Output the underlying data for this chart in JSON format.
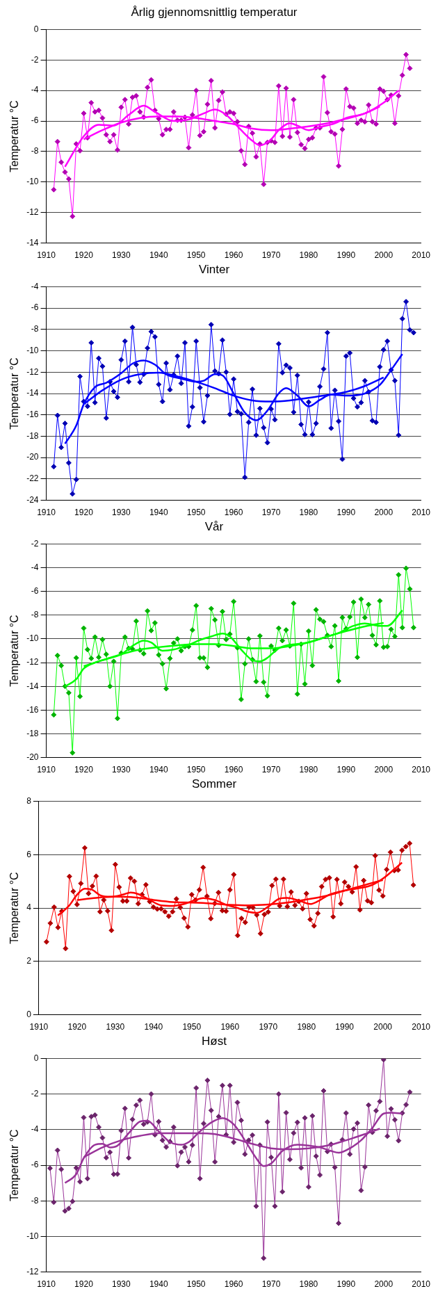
{
  "chart_data": [
    {
      "type": "line",
      "title": "Årlig gjennomsnittlig temperatur",
      "ylabel": "Temperatur °C",
      "xlim": [
        1910,
        2010
      ],
      "xticks": [
        1910,
        1920,
        1930,
        1940,
        1950,
        1960,
        1970,
        1980,
        1990,
        2000,
        2010
      ],
      "ylim": [
        -14,
        0
      ],
      "yticks": [
        -14,
        -12,
        -10,
        -8,
        -6,
        -4,
        -2,
        0
      ],
      "grid": "y",
      "legend": false,
      "marker": "diamond",
      "x": [
        1912,
        1913,
        1914,
        1915,
        1916,
        1917,
        1918,
        1919,
        1920,
        1921,
        1922,
        1923,
        1924,
        1925,
        1926,
        1927,
        1928,
        1929,
        1930,
        1931,
        1932,
        1933,
        1934,
        1935,
        1936,
        1937,
        1938,
        1939,
        1940,
        1941,
        1942,
        1943,
        1944,
        1945,
        1946,
        1947,
        1948,
        1949,
        1950,
        1951,
        1952,
        1953,
        1954,
        1955,
        1956,
        1957,
        1958,
        1959,
        1960,
        1961,
        1962,
        1963,
        1964,
        1965,
        1966,
        1967,
        1968,
        1969,
        1970,
        1971,
        1972,
        1973,
        1974,
        1975,
        1976,
        1977,
        1978,
        1979,
        1980,
        1981,
        1982,
        1983,
        1984,
        1985,
        1986,
        1987,
        1988,
        1989,
        1990,
        1991,
        1992,
        1993,
        1994,
        1995,
        1996,
        1997,
        1998,
        1999,
        2000,
        2001,
        2002,
        2003,
        2004,
        2005,
        2006,
        2007
      ],
      "series": [
        {
          "color": "#ff00ff",
          "values": [
            -10.5,
            -7.35,
            -8.7,
            -9.35,
            -9.8,
            -12.25,
            -7.5,
            -7.95,
            -5.5,
            -7.1,
            -4.8,
            -5.4,
            -5.3,
            -5.8,
            -6.9,
            -7.35,
            -6.9,
            -7.9,
            -5.1,
            -4.6,
            -6.2,
            -4.45,
            -4.35,
            -5.4,
            -5.75,
            -3.8,
            -3.3,
            -5.3,
            -5.85,
            -6.9,
            -6.55,
            -6.55,
            -5.4,
            -5.95,
            -5.95,
            -5.75,
            -7.75,
            -5.6,
            -4.0,
            -6.95,
            -6.7,
            -4.9,
            -3.35,
            -6.45,
            -4.65,
            -4.1,
            -5.55,
            -5.4,
            -5.5,
            -6.05,
            -7.95,
            -8.85,
            -6.35,
            -6.8,
            -8.35,
            -7.5,
            -10.15,
            -7.4,
            -7.3,
            -7.4,
            -3.7,
            -7.0,
            -3.85,
            -7.05,
            -4.6,
            -6.75,
            -7.55,
            -7.8,
            -7.2,
            -7.1,
            -6.45,
            -6.45,
            -3.1,
            -5.45,
            -6.7,
            -6.85,
            -8.95,
            -6.55,
            -3.9,
            -5.05,
            -5.15,
            -6.15,
            -5.95,
            -6.05,
            -4.95,
            -6.05,
            -6.2,
            -3.9,
            -4.05,
            -4.6,
            -4.3,
            -6.15,
            -4.35,
            -3.0,
            -1.65,
            -2.55
          ]
        },
        {
          "color": "#ff00ff",
          "marker": "none",
          "x": [
            1915,
            1920,
            1924,
            1928,
            1932,
            1936,
            1939,
            1944,
            1948,
            1952,
            1955,
            1958,
            1962,
            1965,
            1967,
            1970,
            1972,
            1975,
            1977,
            1980,
            1983,
            1987,
            1990,
            1995,
            2000,
            2004
          ],
          "values": [
            -9.0,
            -7.0,
            -6.25,
            -6.3,
            -5.6,
            -5.0,
            -5.4,
            -6.0,
            -5.9,
            -5.5,
            -5.25,
            -5.6,
            -6.6,
            -7.3,
            -7.6,
            -7.2,
            -6.6,
            -6.15,
            -6.3,
            -6.6,
            -6.4,
            -6.15,
            -5.8,
            -5.5,
            -4.8,
            -4.0
          ]
        },
        {
          "color": "#ff00ff",
          "marker": "none",
          "x": [
            1920,
            1925,
            1930,
            1935,
            1940,
            1945,
            1950,
            1955,
            1960,
            1965,
            1970,
            1975,
            1980,
            1985,
            1990,
            1995,
            1999
          ],
          "values": [
            -7.2,
            -6.6,
            -6.1,
            -5.8,
            -5.7,
            -5.7,
            -5.8,
            -6.0,
            -6.2,
            -6.5,
            -6.6,
            -6.5,
            -6.35,
            -6.15,
            -5.85,
            -5.5,
            -5.05
          ]
        }
      ]
    },
    {
      "type": "line",
      "title": "Vinter",
      "ylabel": "Temperatur °C",
      "xlim": [
        1910,
        2010
      ],
      "xticks": [
        1910,
        1920,
        1930,
        1940,
        1950,
        1960,
        1970,
        1980,
        1990,
        2000,
        2010
      ],
      "ylim": [
        -24,
        -4
      ],
      "yticks": [
        -24,
        -22,
        -20,
        -18,
        -16,
        -14,
        -12,
        -10,
        -8,
        -6,
        -4
      ],
      "grid": "y",
      "legend": false,
      "marker": "diamond",
      "x": [
        1912,
        1913,
        1914,
        1915,
        1916,
        1917,
        1918,
        1919,
        1920,
        1921,
        1922,
        1923,
        1924,
        1925,
        1926,
        1927,
        1928,
        1929,
        1930,
        1931,
        1932,
        1933,
        1934,
        1935,
        1936,
        1937,
        1938,
        1939,
        1940,
        1941,
        1942,
        1943,
        1944,
        1945,
        1946,
        1947,
        1948,
        1949,
        1950,
        1951,
        1952,
        1953,
        1954,
        1955,
        1956,
        1957,
        1958,
        1959,
        1960,
        1961,
        1962,
        1963,
        1964,
        1965,
        1966,
        1967,
        1968,
        1969,
        1970,
        1971,
        1972,
        1973,
        1974,
        1975,
        1976,
        1977,
        1978,
        1979,
        1980,
        1981,
        1982,
        1983,
        1984,
        1985,
        1986,
        1987,
        1988,
        1989,
        1990,
        1991,
        1992,
        1993,
        1994,
        1995,
        1996,
        1997,
        1998,
        1999,
        2000,
        2001,
        2002,
        2003,
        2004,
        2005,
        2006,
        2007,
        2008
      ],
      "series": [
        {
          "color": "#0000ff",
          "values": [
            -20.85,
            -16.05,
            -19.05,
            -16.8,
            -20.5,
            -23.4,
            -22.05,
            -12.4,
            -14.75,
            -15.2,
            -9.25,
            -14.85,
            -10.7,
            -11.45,
            -16.3,
            -12.9,
            -13.8,
            -14.35,
            -10.85,
            -9.1,
            -12.9,
            -7.8,
            -11.3,
            -12.95,
            -12.2,
            -9.75,
            -8.2,
            -8.7,
            -13.15,
            -14.75,
            -11.15,
            -13.65,
            -12.25,
            -10.5,
            -13.05,
            -9.25,
            -17.05,
            -15.25,
            -9.1,
            -13.45,
            -16.65,
            -14.2,
            -7.55,
            -11.9,
            -12.15,
            -9.0,
            -12.0,
            -15.95,
            -12.65,
            -15.7,
            -15.9,
            -21.85,
            -16.7,
            -13.6,
            -17.9,
            -15.4,
            -17.2,
            -18.6,
            -15.45,
            -16.45,
            -9.35,
            -12.05,
            -11.35,
            -11.6,
            -15.75,
            -12.3,
            -16.9,
            -17.85,
            -14.8,
            -17.85,
            -16.8,
            -13.35,
            -11.7,
            -8.3,
            -17.25,
            -13.7,
            -16.6,
            -20.15,
            -10.5,
            -10.2,
            -14.45,
            -15.25,
            -14.85,
            -12.8,
            -13.85,
            -16.55,
            -16.7,
            -11.5,
            -9.9,
            -9.1,
            -11.8,
            -12.8,
            -17.9,
            -7.0,
            -5.4,
            -8.05,
            -8.3
          ]
        },
        {
          "color": "#0000ff",
          "marker": "none",
          "x": [
            1915,
            1918,
            1920,
            1923,
            1926,
            1930,
            1933,
            1936,
            1939,
            1942,
            1946,
            1950,
            1952,
            1955,
            1957,
            1960,
            1963,
            1966,
            1969,
            1972,
            1974,
            1977,
            1980,
            1983,
            1986,
            1990,
            1995,
            1999,
            2002,
            2005
          ],
          "values": [
            -18.7,
            -17.0,
            -15.0,
            -13.4,
            -13.0,
            -12.1,
            -11.2,
            -10.9,
            -11.3,
            -12.2,
            -12.6,
            -12.9,
            -12.8,
            -12.2,
            -12.3,
            -14.0,
            -15.8,
            -16.5,
            -15.6,
            -14.0,
            -13.5,
            -14.2,
            -15.2,
            -14.6,
            -14.1,
            -14.2,
            -14.0,
            -13.2,
            -11.8,
            -10.3
          ]
        },
        {
          "color": "#0000ff",
          "marker": "none",
          "x": [
            1920,
            1925,
            1930,
            1935,
            1940,
            1945,
            1950,
            1955,
            1960,
            1965,
            1970,
            1975,
            1980,
            1985,
            1990,
            1995,
            2000
          ],
          "values": [
            -15.0,
            -13.7,
            -12.7,
            -12.2,
            -12.05,
            -12.4,
            -12.9,
            -13.5,
            -14.2,
            -14.65,
            -14.75,
            -14.65,
            -14.4,
            -14.15,
            -13.85,
            -13.3,
            -12.5
          ]
        }
      ]
    },
    {
      "type": "line",
      "title": "Vår",
      "ylabel": "Temperatur °C",
      "xlim": [
        1910,
        2010
      ],
      "xticks": [
        1910,
        1920,
        1930,
        1940,
        1950,
        1960,
        1970,
        1980,
        1990,
        2000,
        2010
      ],
      "ylim": [
        -20,
        -2
      ],
      "yticks": [
        -20,
        -18,
        -16,
        -14,
        -12,
        -10,
        -8,
        -6,
        -4,
        -2
      ],
      "grid": "y",
      "legend": false,
      "marker": "diamond",
      "x": [
        1912,
        1913,
        1914,
        1915,
        1916,
        1917,
        1918,
        1919,
        1920,
        1921,
        1922,
        1923,
        1924,
        1925,
        1926,
        1927,
        1928,
        1929,
        1930,
        1931,
        1932,
        1933,
        1934,
        1935,
        1936,
        1937,
        1938,
        1939,
        1940,
        1941,
        1942,
        1943,
        1944,
        1945,
        1946,
        1947,
        1948,
        1949,
        1950,
        1951,
        1952,
        1953,
        1954,
        1955,
        1956,
        1957,
        1958,
        1959,
        1960,
        1961,
        1962,
        1963,
        1964,
        1965,
        1966,
        1967,
        1968,
        1969,
        1970,
        1971,
        1972,
        1973,
        1974,
        1975,
        1976,
        1977,
        1978,
        1979,
        1980,
        1981,
        1982,
        1983,
        1984,
        1985,
        1986,
        1987,
        1988,
        1989,
        1990,
        1991,
        1992,
        1993,
        1994,
        1995,
        1996,
        1997,
        1998,
        1999,
        2000,
        2001,
        2002,
        2003,
        2004,
        2005,
        2006,
        2007,
        2008
      ],
      "series": [
        {
          "color": "#00ff00",
          "values": [
            -16.4,
            -11.4,
            -12.25,
            -14.0,
            -14.55,
            -19.6,
            -11.6,
            -14.85,
            -9.1,
            -10.9,
            -11.65,
            -9.85,
            -11.55,
            -10.05,
            -11.3,
            -14.0,
            -11.9,
            -16.7,
            -11.2,
            -9.85,
            -10.8,
            -10.85,
            -8.5,
            -10.95,
            -11.25,
            -7.65,
            -9.3,
            -8.65,
            -11.35,
            -12.1,
            -14.2,
            -11.65,
            -10.35,
            -10.0,
            -11.0,
            -10.65,
            -10.65,
            -9.25,
            -7.2,
            -11.6,
            -11.6,
            -12.4,
            -7.45,
            -8.4,
            -10.55,
            -7.7,
            -10.05,
            -9.6,
            -6.85,
            -10.75,
            -15.1,
            -12.1,
            -10.0,
            -11.75,
            -13.6,
            -9.75,
            -13.65,
            -14.8,
            -10.6,
            -10.95,
            -9.1,
            -10.15,
            -9.25,
            -10.6,
            -7.0,
            -14.65,
            -10.45,
            -13.8,
            -9.35,
            -12.25,
            -7.55,
            -8.35,
            -8.55,
            -9.7,
            -10.65,
            -8.9,
            -13.55,
            -8.2,
            -9.15,
            -8.15,
            -6.9,
            -11.55,
            -6.65,
            -8.2,
            -7.1,
            -9.7,
            -10.5,
            -6.8,
            -10.7,
            -10.65,
            -9.2,
            -9.8,
            -4.6,
            -9.05,
            -4.05,
            -5.8,
            -9.05
          ]
        },
        {
          "color": "#00ff00",
          "marker": "none",
          "x": [
            1915,
            1918,
            1920,
            1923,
            1926,
            1930,
            1933,
            1936,
            1938,
            1941,
            1944,
            1948,
            1951,
            1954,
            1957,
            1959,
            1962,
            1965,
            1967,
            1969,
            1972,
            1975,
            1978,
            1981,
            1984,
            1988,
            1992,
            1995,
            1999,
            2001,
            2005
          ],
          "values": [
            -14.0,
            -13.4,
            -12.5,
            -12.0,
            -11.7,
            -11.3,
            -10.6,
            -10.15,
            -10.3,
            -11.0,
            -10.9,
            -10.5,
            -10.1,
            -9.8,
            -9.55,
            -9.8,
            -10.9,
            -11.8,
            -11.9,
            -11.6,
            -10.8,
            -10.5,
            -10.4,
            -10.2,
            -9.9,
            -9.5,
            -8.9,
            -8.7,
            -8.9,
            -8.9,
            -7.6
          ]
        },
        {
          "color": "#00ff00",
          "marker": "none",
          "x": [
            1920,
            1925,
            1930,
            1935,
            1940,
            1945,
            1950,
            1955,
            1960,
            1965,
            1970,
            1975,
            1980,
            1985,
            1990,
            1995,
            2000
          ],
          "values": [
            -12.3,
            -11.8,
            -11.3,
            -10.9,
            -10.7,
            -10.55,
            -10.45,
            -10.45,
            -10.6,
            -10.8,
            -10.8,
            -10.6,
            -10.3,
            -9.8,
            -9.35,
            -8.95,
            -8.65
          ]
        }
      ]
    },
    {
      "type": "line",
      "title": "Sommer",
      "ylabel": "Temperatur °C",
      "xlim": [
        1910,
        2010
      ],
      "xticks": [
        1910,
        1920,
        1930,
        1940,
        1950,
        1960,
        1970,
        1980,
        1990,
        2000,
        2010
      ],
      "ylim": [
        0,
        8
      ],
      "yticks": [
        0,
        2,
        4,
        6,
        8
      ],
      "grid": "y",
      "legend": false,
      "marker": "diamond",
      "x": [
        1912,
        1913,
        1914,
        1915,
        1916,
        1917,
        1918,
        1919,
        1920,
        1921,
        1922,
        1923,
        1924,
        1925,
        1926,
        1927,
        1928,
        1929,
        1930,
        1931,
        1932,
        1933,
        1934,
        1935,
        1936,
        1937,
        1938,
        1939,
        1940,
        1941,
        1942,
        1943,
        1944,
        1945,
        1946,
        1947,
        1948,
        1949,
        1950,
        1951,
        1952,
        1953,
        1954,
        1955,
        1956,
        1957,
        1958,
        1959,
        1960,
        1961,
        1962,
        1963,
        1964,
        1965,
        1966,
        1967,
        1968,
        1969,
        1970,
        1971,
        1972,
        1973,
        1974,
        1975,
        1976,
        1977,
        1978,
        1979,
        1980,
        1981,
        1982,
        1983,
        1984,
        1985,
        1986,
        1987,
        1988,
        1989,
        1990,
        1991,
        1992,
        1993,
        1994,
        1995,
        1996,
        1997,
        1998,
        1999,
        2000,
        2001,
        2002,
        2003,
        2004,
        2005,
        2006,
        2007,
        2008
      ],
      "series": [
        {
          "color": "#ff0000",
          "values": [
            2.73,
            3.43,
            4.03,
            3.27,
            3.88,
            2.48,
            5.18,
            4.62,
            4.13,
            4.92,
            6.25,
            4.54,
            4.82,
            5.19,
            3.86,
            4.3,
            3.89,
            3.16,
            5.63,
            4.78,
            4.26,
            4.26,
            5.12,
            5.0,
            4.16,
            4.5,
            4.87,
            4.24,
            4.03,
            3.96,
            3.97,
            3.86,
            3.69,
            3.86,
            4.34,
            4.02,
            3.62,
            3.29,
            4.5,
            4.3,
            4.68,
            5.52,
            4.44,
            3.6,
            4.17,
            4.58,
            3.9,
            3.88,
            4.68,
            5.25,
            2.97,
            3.61,
            3.46,
            4.03,
            4.02,
            3.74,
            3.04,
            3.76,
            3.85,
            4.84,
            5.08,
            4.08,
            5.08,
            4.05,
            4.6,
            4.1,
            4.25,
            3.97,
            4.54,
            3.57,
            3.33,
            3.8,
            4.8,
            5.07,
            5.13,
            3.67,
            5.07,
            4.16,
            4.97,
            4.8,
            4.6,
            5.54,
            3.93,
            5.03,
            4.27,
            4.2,
            5.96,
            4.67,
            4.45,
            5.44,
            6.09,
            5.4,
            5.42,
            6.16,
            6.3,
            6.42,
            4.86
          ]
        },
        {
          "color": "#ff0000",
          "marker": "none",
          "x": [
            1915,
            1918,
            1920,
            1922,
            1924,
            1926,
            1929,
            1932,
            1934,
            1936,
            1939,
            1942,
            1945,
            1948,
            1951,
            1953,
            1956,
            1959,
            1962,
            1965,
            1967,
            1970,
            1973,
            1975,
            1978,
            1981,
            1983,
            1986,
            1990,
            1994,
            1997,
            2000,
            2003,
            2005
          ],
          "values": [
            3.72,
            4.1,
            4.5,
            4.72,
            4.68,
            4.48,
            4.42,
            4.5,
            4.58,
            4.52,
            4.3,
            4.1,
            4.08,
            4.15,
            4.3,
            4.37,
            4.3,
            4.12,
            4.0,
            3.85,
            3.82,
            4.05,
            4.35,
            4.38,
            4.28,
            4.15,
            4.25,
            4.5,
            4.65,
            4.75,
            4.85,
            5.1,
            5.45,
            5.7
          ]
        },
        {
          "color": "#ff0000",
          "marker": "none",
          "x": [
            1920,
            1925,
            1930,
            1935,
            1940,
            1945,
            1950,
            1955,
            1960,
            1965,
            1970,
            1975,
            1980,
            1985,
            1990,
            1995,
            2000
          ],
          "values": [
            4.3,
            4.38,
            4.42,
            4.4,
            4.3,
            4.22,
            4.2,
            4.17,
            4.12,
            4.1,
            4.13,
            4.2,
            4.32,
            4.45,
            4.65,
            4.85,
            5.05
          ]
        }
      ]
    },
    {
      "type": "line",
      "title": "Høst",
      "ylabel": "Temperatur °C",
      "xlim": [
        1910,
        2010
      ],
      "xticks": [
        1910,
        1920,
        1930,
        1940,
        1950,
        1960,
        1970,
        1980,
        1990,
        2000,
        2010
      ],
      "ylim": [
        -12,
        0
      ],
      "yticks": [
        -12,
        -10,
        -8,
        -6,
        -4,
        -2,
        0
      ],
      "grid": "y",
      "legend": false,
      "marker": "diamond",
      "x": [
        1911,
        1912,
        1913,
        1914,
        1915,
        1916,
        1917,
        1918,
        1919,
        1920,
        1921,
        1922,
        1923,
        1924,
        1925,
        1926,
        1927,
        1928,
        1929,
        1930,
        1931,
        1932,
        1933,
        1934,
        1935,
        1936,
        1937,
        1938,
        1939,
        1940,
        1941,
        1942,
        1943,
        1944,
        1945,
        1946,
        1947,
        1948,
        1949,
        1950,
        1951,
        1952,
        1953,
        1954,
        1955,
        1956,
        1957,
        1958,
        1959,
        1960,
        1961,
        1962,
        1963,
        1964,
        1965,
        1966,
        1967,
        1968,
        1969,
        1970,
        1971,
        1972,
        1973,
        1974,
        1975,
        1976,
        1977,
        1978,
        1979,
        1980,
        1981,
        1982,
        1983,
        1984,
        1985,
        1986,
        1987,
        1988,
        1989,
        1990,
        1991,
        1992,
        1993,
        1994,
        1995,
        1996,
        1997,
        1998,
        1999,
        2000,
        2001,
        2002,
        2003,
        2004,
        2005,
        2006,
        2007
      ],
      "series": [
        {
          "color": "#993399",
          "values": [
            -6.17,
            -8.08,
            -5.16,
            -6.23,
            -8.57,
            -8.43,
            -8.03,
            -6.15,
            -6.93,
            -3.32,
            -6.75,
            -3.27,
            -3.18,
            -3.86,
            -4.46,
            -5.58,
            -5.27,
            -6.51,
            -6.5,
            -4.06,
            -2.81,
            -5.59,
            -3.43,
            -2.63,
            -2.35,
            -3.7,
            -3.57,
            -2.0,
            -4.29,
            -3.55,
            -4.6,
            -4.98,
            -4.67,
            -3.86,
            -6.03,
            -5.27,
            -4.98,
            -5.81,
            -4.87,
            -1.66,
            -6.75,
            -3.66,
            -1.23,
            -2.92,
            -5.81,
            -3.27,
            -1.52,
            -4.29,
            -1.52,
            -4.71,
            -2.47,
            -3.48,
            -5.38,
            -4.6,
            -4.31,
            -8.3,
            -4.87,
            -11.22,
            -3.57,
            -5.56,
            -8.3,
            -2.0,
            -7.49,
            -3.05,
            -5.68,
            -4.19,
            -3.59,
            -6.15,
            -3.34,
            -7.22,
            -3.23,
            -5.49,
            -6.55,
            -1.82,
            -5.23,
            -4.82,
            -6.12,
            -9.26,
            -4.57,
            -3.07,
            -5.38,
            -3.97,
            -3.63,
            -7.42,
            -6.1,
            -2.62,
            -4.15,
            -2.94,
            -2.42,
            -0.07,
            -4.37,
            -2.83,
            -3.45,
            -4.62,
            -3.07,
            -2.6,
            -1.89
          ]
        },
        {
          "color": "#993399",
          "marker": "none",
          "x": [
            1915,
            1918,
            1920,
            1923,
            1925,
            1927,
            1929,
            1932,
            1935,
            1937,
            1940,
            1943,
            1946,
            1948,
            1951,
            1954,
            1957,
            1960,
            1963,
            1966,
            1968,
            1970,
            1973,
            1977,
            1980,
            1983,
            1986,
            1988,
            1991,
            1994,
            1997,
            2000,
            2002,
            2005
          ],
          "values": [
            -7.0,
            -6.5,
            -5.6,
            -4.85,
            -4.8,
            -5.0,
            -4.9,
            -4.2,
            -3.55,
            -3.5,
            -4.1,
            -4.7,
            -4.85,
            -4.7,
            -4.1,
            -3.6,
            -3.35,
            -3.7,
            -4.6,
            -5.6,
            -6.05,
            -5.9,
            -5.2,
            -4.85,
            -4.9,
            -5.0,
            -5.2,
            -5.3,
            -5.05,
            -4.6,
            -3.9,
            -3.1,
            -3.05,
            -3.1
          ]
        },
        {
          "color": "#993399",
          "marker": "none",
          "x": [
            1920,
            1925,
            1930,
            1935,
            1940,
            1945,
            1950,
            1955,
            1960,
            1965,
            1970,
            1975,
            1980,
            1985,
            1990,
            1995,
            1999
          ],
          "values": [
            -5.55,
            -5.0,
            -4.6,
            -4.35,
            -4.2,
            -4.2,
            -4.2,
            -4.25,
            -4.5,
            -4.8,
            -5.05,
            -5.1,
            -5.05,
            -4.9,
            -4.6,
            -4.25,
            -3.95
          ]
        }
      ]
    }
  ]
}
